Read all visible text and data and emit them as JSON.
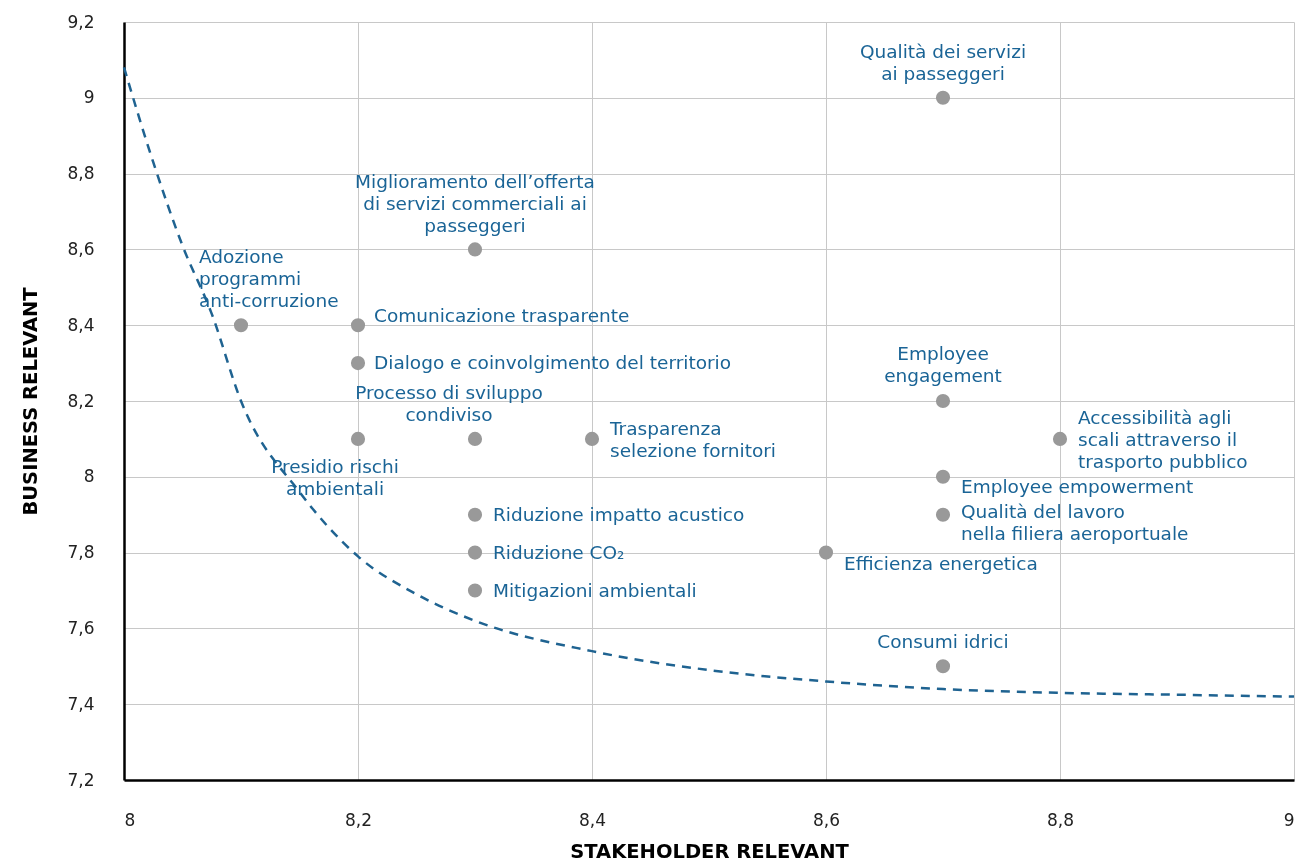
{
  "chart_data": {
    "type": "scatter",
    "xlabel": "STAKEHOLDER RELEVANT",
    "ylabel": "BUSINESS RELEVANT",
    "xlim": [
      8,
      9
    ],
    "ylim": [
      7.2,
      9.2
    ],
    "xticks": [
      8,
      {
        "value": 8.2,
        "label": "8,2"
      },
      {
        "value": 8.4,
        "label": "8,4"
      },
      {
        "value": 8.6,
        "label": "8,6"
      },
      {
        "value": 8.8,
        "label": "8,8"
      },
      9
    ],
    "yticks": [
      {
        "value": 7.2,
        "label": "7,2"
      },
      {
        "value": 7.4,
        "label": "7,4"
      },
      {
        "value": 7.6,
        "label": "7,6"
      },
      {
        "value": 7.8,
        "label": "7,8"
      },
      8,
      {
        "value": 8.2,
        "label": "8,2"
      },
      {
        "value": 8.4,
        "label": "8,4"
      },
      {
        "value": 8.6,
        "label": "8,6"
      },
      {
        "value": 8.8,
        "label": "8,8"
      },
      9,
      {
        "value": 9.2,
        "label": "9,2"
      }
    ],
    "grid": true,
    "series": [
      {
        "marker": "circle",
        "color": "#999999",
        "x": [
          8.7,
          8.3,
          8.1,
          8.2,
          8.2,
          8.3,
          8.2,
          8.4,
          8.7,
          8.8,
          8.7,
          8.7,
          8.3,
          8.3,
          8.3,
          8.6,
          8.7
        ],
        "values": [
          9.0,
          8.6,
          8.4,
          8.4,
          8.3,
          8.1,
          8.1,
          8.1,
          8.2,
          8.1,
          8.0,
          7.9,
          7.9,
          7.8,
          7.7,
          7.8,
          7.5
        ]
      },
      {
        "type": "line",
        "color": "#1f6391",
        "line_style": "dashed",
        "x": [
          8.0,
          8.025,
          8.05,
          8.075,
          8.1,
          8.15,
          8.2,
          8.25,
          8.3,
          8.4,
          8.5,
          8.6,
          8.7,
          8.8,
          8.9,
          9.0
        ],
        "values": [
          9.08,
          8.83,
          8.61,
          8.43,
          8.2,
          7.96,
          7.79,
          7.69,
          7.62,
          7.54,
          7.49,
          7.46,
          7.44,
          7.43,
          7.425,
          7.42
        ]
      }
    ],
    "annotations": [
      {
        "text": "Qualità dei servizi\nai passeggeri",
        "x": 8.7,
        "y": 9.0
      },
      {
        "text": "Miglioramento dell’offerta\ndi servizi commerciali ai\npasseggeri",
        "x": 8.3,
        "y": 8.6
      },
      {
        "text": "Adozione\nprogrammi\nanti-corruzione",
        "x": 8.1,
        "y": 8.4
      },
      {
        "text": "Comunicazione trasparente",
        "x": 8.2,
        "y": 8.4
      },
      {
        "text": "Dialogo e coinvolgimento del territorio",
        "x": 8.2,
        "y": 8.3
      },
      {
        "text": "Processo di sviluppo\ncondiviso",
        "x": 8.3,
        "y": 8.1
      },
      {
        "text": "Presidio rischi\nambientali",
        "x": 8.2,
        "y": 8.1
      },
      {
        "text": "Trasparenza\nselezione fornitori",
        "x": 8.4,
        "y": 8.1
      },
      {
        "text": "Employee\nengagement",
        "x": 8.7,
        "y": 8.2
      },
      {
        "text": "Accessibilità agli\nscali attraverso il\ntrasporto pubblico",
        "x": 8.8,
        "y": 8.1
      },
      {
        "text": "Employee empowerment",
        "x": 8.7,
        "y": 8.0
      },
      {
        "text": "Qualità del lavoro\nnella filiera aeroportuale",
        "x": 8.7,
        "y": 7.9
      },
      {
        "text": "Riduzione impatto acustico",
        "x": 8.3,
        "y": 7.9
      },
      {
        "text": "Riduzione CO₂",
        "x": 8.3,
        "y": 7.8
      },
      {
        "text": "Mitigazioni ambientali",
        "x": 8.3,
        "y": 7.7
      },
      {
        "text": "Efficienza energetica",
        "x": 8.6,
        "y": 7.8
      },
      {
        "text": "Consumi idrici",
        "x": 8.7,
        "y": 7.5
      }
    ]
  }
}
